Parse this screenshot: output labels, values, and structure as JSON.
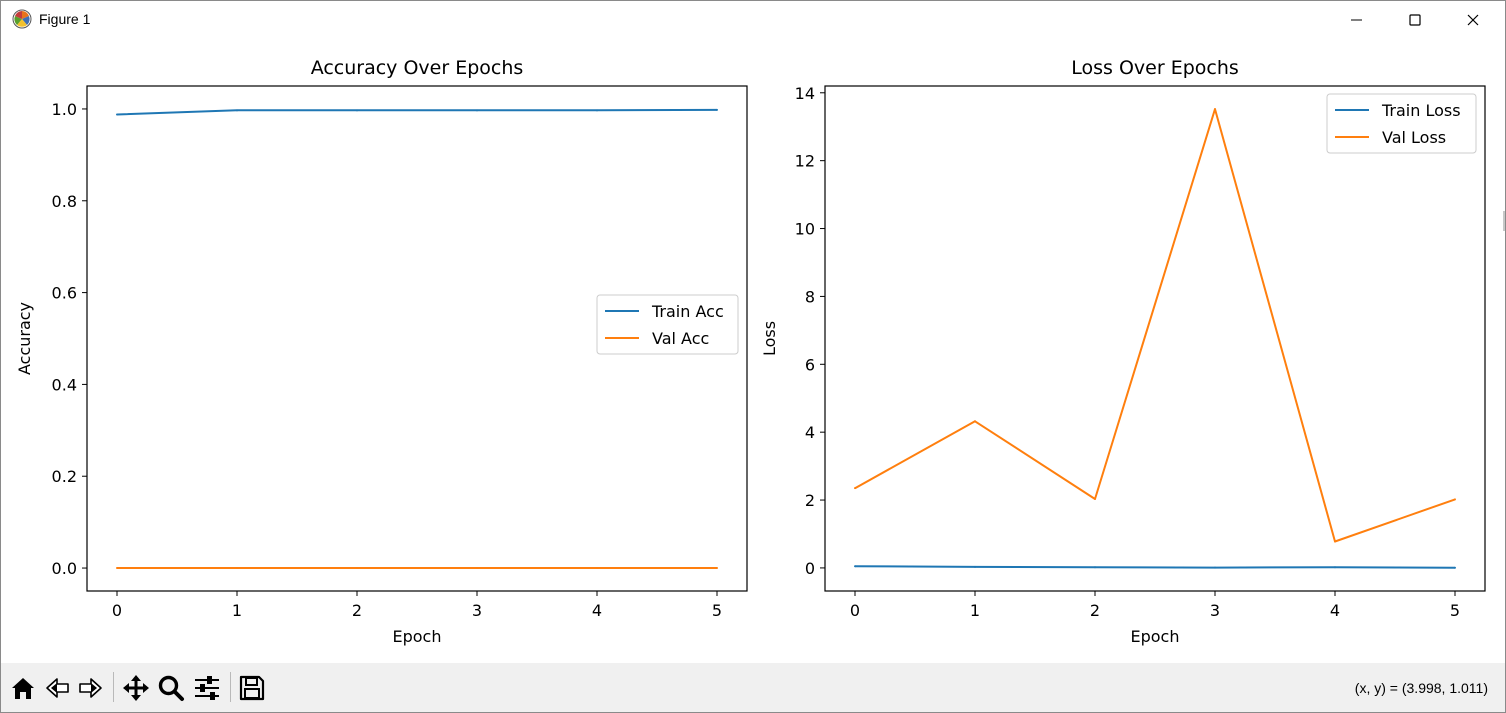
{
  "window": {
    "title": "Figure 1",
    "icon": "matplotlib-logo-icon",
    "controls": [
      "minimize-icon",
      "maximize-icon",
      "close-icon"
    ]
  },
  "toolbar": {
    "tools": [
      "home-icon",
      "back-arrow-icon",
      "forward-arrow-icon",
      "pan-move-icon",
      "zoom-magnifier-icon",
      "configure-subplots-icon",
      "save-floppy-icon"
    ],
    "coordinates": "(x, y) = (3.998, 1.011)"
  },
  "chart_data": [
    {
      "type": "line",
      "title": "Accuracy Over Epochs",
      "xlabel": "Epoch",
      "ylabel": "Accuracy",
      "xlim": [
        -0.25,
        5.25
      ],
      "ylim": [
        -0.05,
        1.05
      ],
      "xticks": [
        0,
        1,
        2,
        3,
        4,
        5
      ],
      "yticks": [
        0.0,
        0.2,
        0.4,
        0.6,
        0.8,
        1.0
      ],
      "ytick_labels": [
        "0.0",
        "0.2",
        "0.4",
        "0.6",
        "0.8",
        "1.0"
      ],
      "grid": false,
      "legend_position": "center-right",
      "x": [
        0,
        1,
        2,
        3,
        4,
        5
      ],
      "series": [
        {
          "name": "Train Acc",
          "color": "#1f77b4",
          "values": [
            0.988,
            0.997,
            0.997,
            0.997,
            0.997,
            0.998
          ]
        },
        {
          "name": "Val Acc",
          "color": "#ff7f0e",
          "values": [
            0.0,
            0.0,
            0.0,
            0.0,
            0.0,
            0.0
          ]
        }
      ]
    },
    {
      "type": "line",
      "title": "Loss Over Epochs",
      "xlabel": "Epoch",
      "ylabel": "Loss",
      "xlim": [
        -0.25,
        5.25
      ],
      "ylim": [
        -0.68,
        14.2
      ],
      "xticks": [
        0,
        1,
        2,
        3,
        4,
        5
      ],
      "yticks": [
        0,
        2,
        4,
        6,
        8,
        10,
        12,
        14
      ],
      "ytick_labels": [
        "0",
        "2",
        "4",
        "6",
        "8",
        "10",
        "12",
        "14"
      ],
      "grid": false,
      "legend_position": "top-right",
      "x": [
        0,
        1,
        2,
        3,
        4,
        5
      ],
      "series": [
        {
          "name": "Train Loss",
          "color": "#1f77b4",
          "values": [
            0.05,
            0.03,
            0.02,
            0.01,
            0.02,
            0.005
          ]
        },
        {
          "name": "Val Loss",
          "color": "#ff7f0e",
          "values": [
            2.35,
            4.32,
            2.03,
            13.52,
            0.78,
            2.02
          ]
        }
      ]
    }
  ]
}
